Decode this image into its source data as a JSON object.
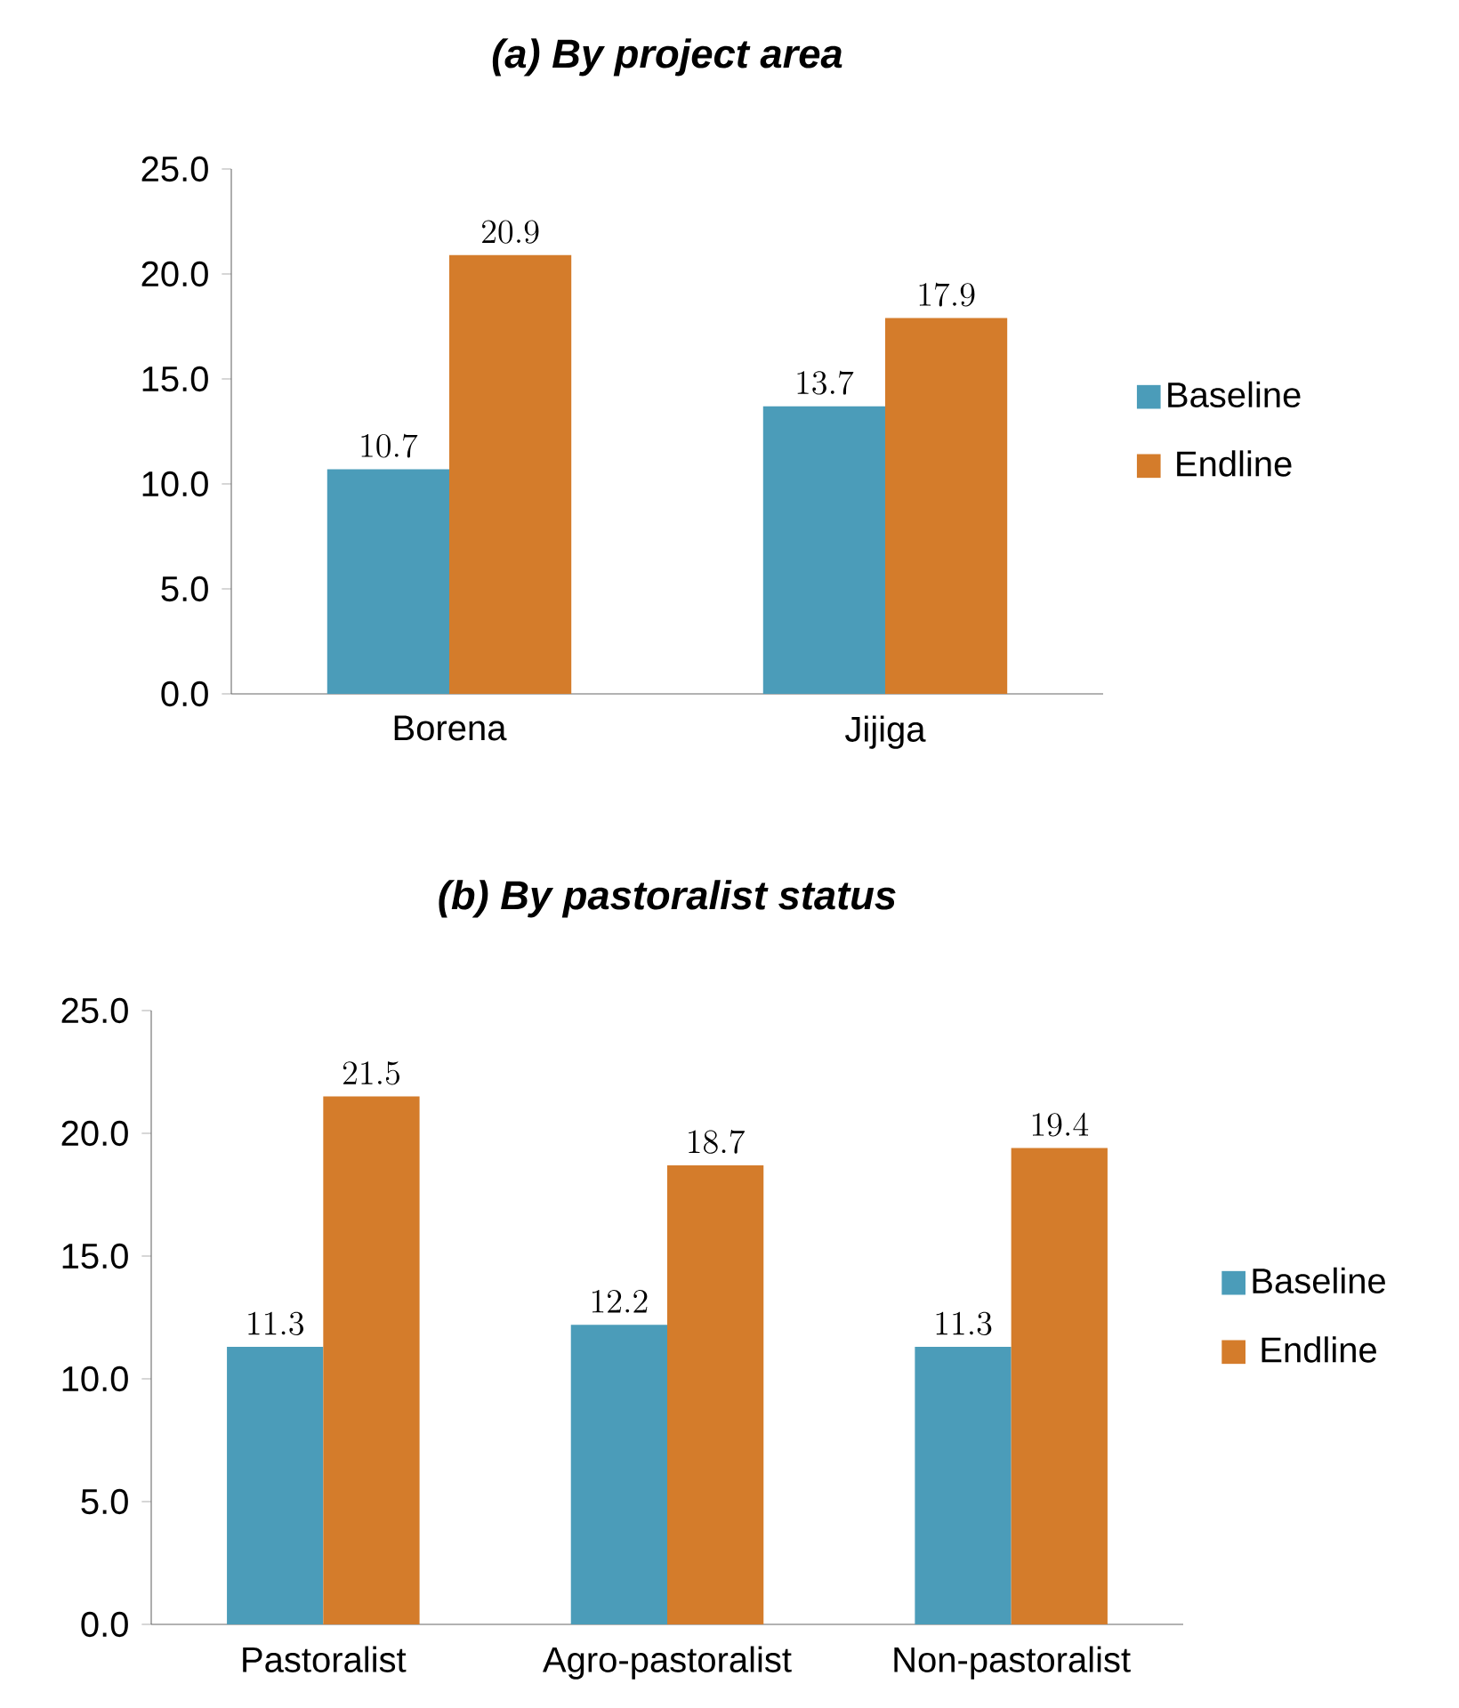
{
  "chart_data": [
    {
      "type": "bar",
      "title": "(a) By project area",
      "categories": [
        "Borena",
        "Jijiga"
      ],
      "series": [
        {
          "name": "Baseline",
          "color": "#4b9cb9",
          "values": [
            10.7,
            13.7
          ]
        },
        {
          "name": "Endline",
          "color": "#d47c2b",
          "values": [
            20.9,
            17.9
          ]
        }
      ],
      "ylim": [
        0,
        25
      ],
      "yticks": [
        {
          "value": 0,
          "label": "0.0"
        },
        {
          "value": 5,
          "label": "5.0"
        },
        {
          "value": 10,
          "label": "10.0"
        },
        {
          "value": 15,
          "label": "15.0"
        },
        {
          "value": 20,
          "label": "20.0"
        },
        {
          "value": 25,
          "label": "25.0"
        }
      ],
      "data_labels": true,
      "legend": "right"
    },
    {
      "type": "bar",
      "title": "(b) By pastoralist status",
      "categories": [
        "Pastoralist",
        "Agro-pastoralist",
        "Non-pastoralist"
      ],
      "series": [
        {
          "name": "Baseline",
          "color": "#4b9cb9",
          "values": [
            11.3,
            12.2,
            11.3
          ]
        },
        {
          "name": "Endline",
          "color": "#d47c2b",
          "values": [
            21.5,
            18.7,
            19.4
          ]
        }
      ],
      "ylim": [
        0,
        25
      ],
      "yticks": [
        {
          "value": 0,
          "label": "0.0"
        },
        {
          "value": 5,
          "label": "5.0"
        },
        {
          "value": 10,
          "label": "10.0"
        },
        {
          "value": 15,
          "label": "15.0"
        },
        {
          "value": 20,
          "label": "20.0"
        },
        {
          "value": 25,
          "label": "25.0"
        }
      ],
      "data_labels": true,
      "legend": "right"
    }
  ]
}
